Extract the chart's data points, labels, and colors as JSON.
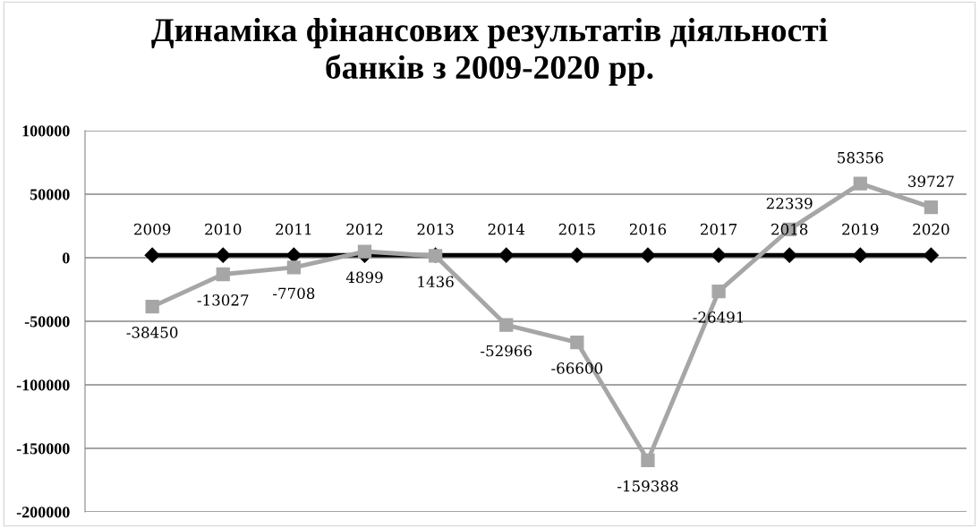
{
  "chart_data": {
    "type": "line",
    "title": "Динаміка фінансових результатів діяльності\nбанків з 2009-2020 рр.",
    "categories": [
      null,
      null,
      null,
      null,
      null,
      null,
      null,
      null,
      null,
      null,
      null,
      null
    ],
    "series": [
      {
        "color": "#000000",
        "marker": "diamond",
        "values": [
          2009,
          2010,
          2011,
          2012,
          2013,
          2014,
          2015,
          2016,
          2017,
          2018,
          2019,
          2020
        ]
      },
      {
        "color": "#a6a6a6",
        "marker": "square",
        "values": [
          -38450,
          -13027,
          -7708,
          4899,
          1436,
          -52966,
          -66600,
          -159388,
          -26491,
          22339,
          58356,
          39727
        ]
      }
    ],
    "ylim": [
      -200000,
      100000
    ],
    "yticks": [
      -200000,
      -150000,
      -100000,
      -50000,
      0,
      50000,
      100000
    ],
    "grid": "y",
    "data_labels": true,
    "line_style": "solid"
  }
}
